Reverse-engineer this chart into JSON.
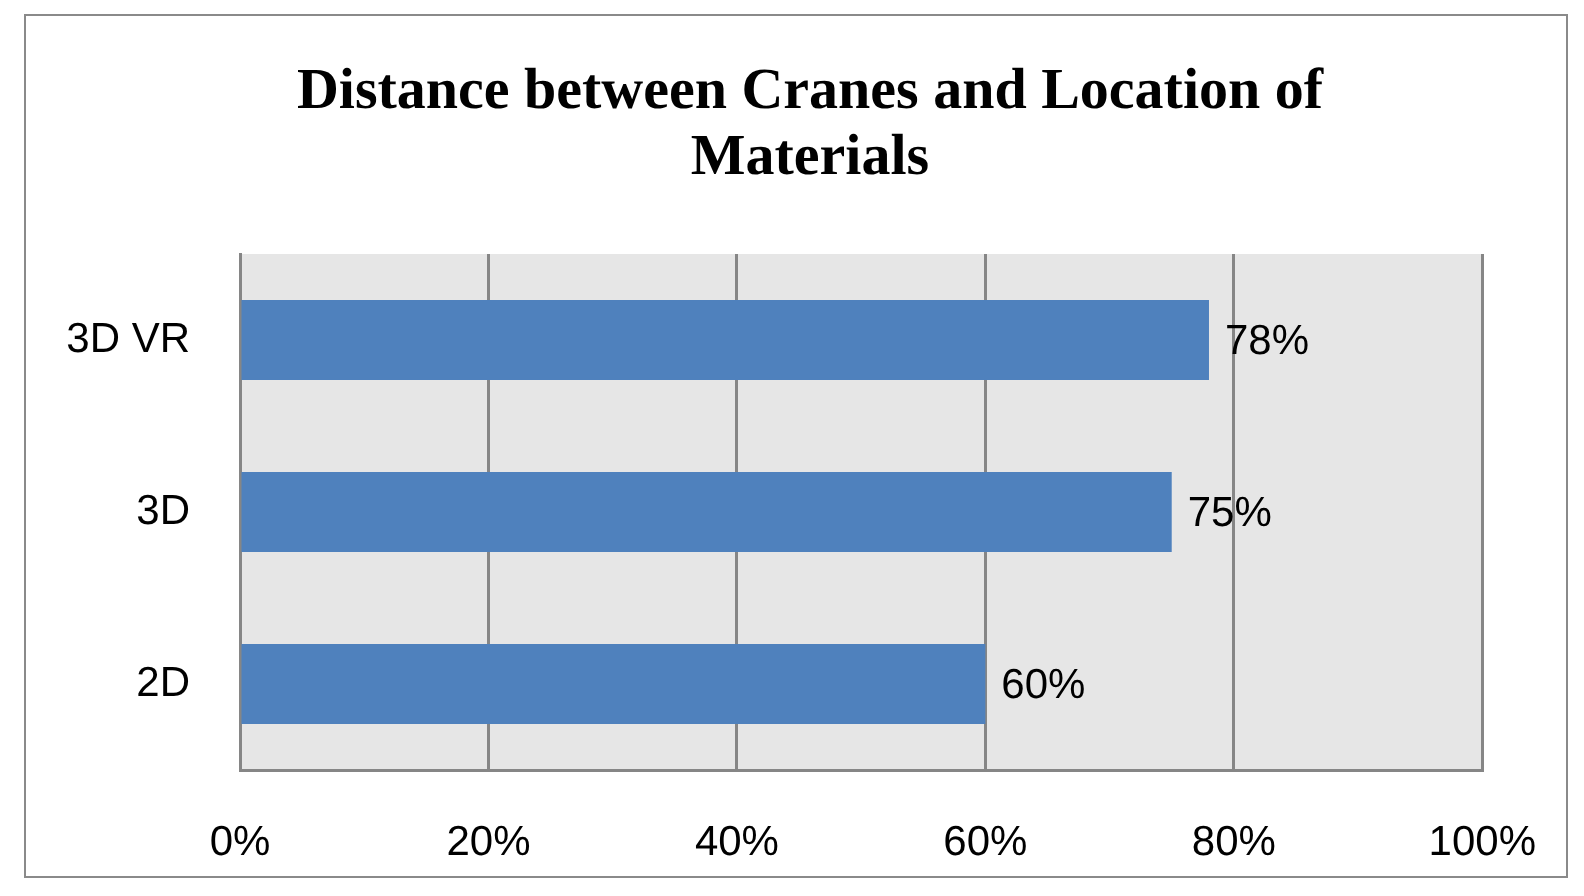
{
  "chart_data": {
    "type": "bar",
    "orientation": "horizontal",
    "title": "Distance between Cranes and Location of Materials",
    "categories": [
      "3D VR",
      "3D",
      "2D"
    ],
    "values": [
      78,
      75,
      60
    ],
    "color": "#4f81bd",
    "value_labels": [
      "78%",
      "75%",
      "60%"
    ],
    "xlim": [
      0,
      100
    ],
    "xticks": [
      {
        "value": 0,
        "label": "0%"
      },
      {
        "value": 20,
        "label": "20%"
      },
      {
        "value": 40,
        "label": "40%"
      },
      {
        "value": 60,
        "label": "60%"
      },
      {
        "value": 80,
        "label": "80%"
      },
      {
        "value": 100,
        "label": "100%"
      }
    ],
    "grid": "x"
  }
}
